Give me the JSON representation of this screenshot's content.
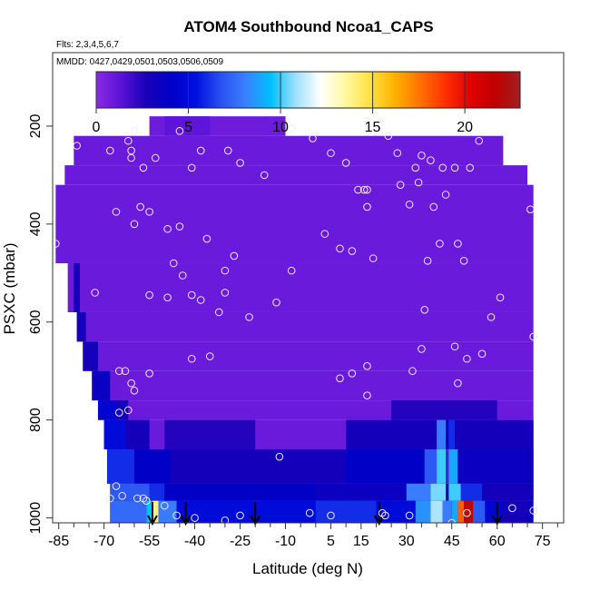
{
  "chart_data": {
    "type": "heatmap",
    "title": "ATOM4 Southbound Ncoa1_CAPS",
    "subtitle_flights": "Flts: 2,3,4,5,6,7",
    "subtitle_dates": "MMDD: 0427,0429,0501,0503,0506,0509",
    "xlabel": "Latitude (deg N)",
    "ylabel": "PSXC (mbar)",
    "xlim": [
      -87,
      82
    ],
    "ylim": [
      1010,
      50
    ],
    "y_reversed": true,
    "x_ticks": [
      -85,
      -70,
      -55,
      -40,
      -25,
      -10,
      5,
      15,
      30,
      45,
      60,
      75
    ],
    "x_tick_labels": [
      "-85",
      "-70",
      "-55",
      "-40",
      "-25",
      "-10",
      "5",
      "15",
      "30",
      "45",
      "60",
      "75"
    ],
    "y_ticks": [
      200,
      400,
      600,
      800,
      1000
    ],
    "y_tick_labels": [
      "200",
      "400",
      "600",
      "800",
      "1000"
    ],
    "colorbar": {
      "range": [
        0,
        23
      ],
      "ticks": [
        0,
        5,
        10,
        15,
        20
      ],
      "tick_labels": [
        "0",
        "5",
        "10",
        "15",
        "20"
      ],
      "colors": [
        "#8a2be2",
        "#5a12d8",
        "#1a00b8",
        "#0000c8",
        "#0010e0",
        "#2a50f0",
        "#3a80ff",
        "#00bfff",
        "#9fe0ff",
        "#ffffff",
        "#fff8a0",
        "#ffe040",
        "#ffb000",
        "#ff7000",
        "#ff3000",
        "#e00000",
        "#c00000",
        "#a02020"
      ]
    },
    "profile_markers_latitude": [
      -54,
      -43,
      -20,
      21,
      60
    ],
    "sample_points": [
      [
        -86,
        440
      ],
      [
        -79,
        240
      ],
      [
        -73,
        540
      ],
      [
        -68,
        250
      ],
      [
        -62,
        230
      ],
      [
        -61,
        250
      ],
      [
        -60,
        210
      ],
      [
        -61,
        265
      ],
      [
        -57,
        285
      ],
      [
        -53,
        265
      ],
      [
        -45,
        210
      ],
      [
        -41,
        285
      ],
      [
        -38,
        250
      ],
      [
        -29,
        250
      ],
      [
        -25,
        275
      ],
      [
        -17,
        300
      ],
      [
        -8,
        205
      ],
      [
        -1,
        225
      ],
      [
        -66,
        375
      ],
      [
        -58,
        365
      ],
      [
        -55,
        375
      ],
      [
        -49,
        410
      ],
      [
        -45,
        405
      ],
      [
        -36,
        430
      ],
      [
        -27,
        465
      ],
      [
        -30,
        495
      ],
      [
        -60,
        400
      ],
      [
        -47,
        480
      ],
      [
        -44,
        505
      ],
      [
        -41,
        545
      ],
      [
        -55,
        545
      ],
      [
        -49,
        550
      ],
      [
        -30,
        540
      ],
      [
        -22,
        590
      ],
      [
        -13,
        560
      ],
      [
        -8,
        495
      ],
      [
        3,
        420
      ],
      [
        8,
        450
      ],
      [
        12,
        455
      ],
      [
        14,
        330
      ],
      [
        16,
        330
      ],
      [
        17,
        365
      ],
      [
        17,
        330
      ],
      [
        19,
        470
      ],
      [
        24,
        220
      ],
      [
        27,
        255
      ],
      [
        5,
        255
      ],
      [
        10,
        275
      ],
      [
        -32,
        580
      ],
      [
        -38,
        555
      ],
      [
        -41,
        675
      ],
      [
        -35,
        670
      ],
      [
        -63,
        700
      ],
      [
        -61,
        725
      ],
      [
        -65,
        700
      ],
      [
        -60,
        740
      ],
      [
        -55,
        705
      ],
      [
        -62,
        780
      ],
      [
        -65,
        785
      ],
      [
        -12,
        875
      ],
      [
        -68,
        960
      ],
      [
        -66,
        935
      ],
      [
        -64,
        955
      ],
      [
        -59,
        960
      ],
      [
        -57,
        960
      ],
      [
        -56,
        965
      ],
      [
        -50,
        975
      ],
      [
        -46,
        995
      ],
      [
        -40,
        1000
      ],
      [
        -30,
        1005
      ],
      [
        -25,
        995
      ],
      [
        -2,
        990
      ],
      [
        5,
        995
      ],
      [
        8,
        715
      ],
      [
        12,
        705
      ],
      [
        17,
        690
      ],
      [
        17,
        750
      ],
      [
        22,
        990
      ],
      [
        23,
        995
      ],
      [
        31,
        995
      ],
      [
        32,
        700
      ],
      [
        35,
        655
      ],
      [
        36,
        575
      ],
      [
        37,
        475
      ],
      [
        41,
        440
      ],
      [
        47,
        440
      ],
      [
        49,
        475
      ],
      [
        46,
        650
      ],
      [
        50,
        675
      ],
      [
        55,
        665
      ],
      [
        58,
        590
      ],
      [
        61,
        550
      ],
      [
        65,
        980
      ],
      [
        72,
        985
      ],
      [
        71,
        370
      ],
      [
        72,
        630
      ],
      [
        47,
        725
      ],
      [
        45,
        1010
      ],
      [
        35,
        260
      ],
      [
        38,
        270
      ],
      [
        42,
        285
      ],
      [
        46,
        285
      ],
      [
        51,
        285
      ],
      [
        54,
        230
      ],
      [
        33,
        285
      ],
      [
        50,
        990
      ],
      [
        28,
        320
      ],
      [
        31,
        360
      ],
      [
        34,
        315
      ],
      [
        43,
        340
      ],
      [
        39,
        365
      ]
    ],
    "fill_rows": [
      {
        "p_top": 180,
        "p_bottom": 220,
        "segments": [
          [
            -55,
            -10,
            0.8
          ],
          [
            -50,
            -35,
            1.2
          ]
        ]
      },
      {
        "p_top": 220,
        "p_bottom": 280,
        "segments": [
          [
            -80,
            62,
            0.9
          ]
        ]
      },
      {
        "p_top": 280,
        "p_bottom": 320,
        "segments": [
          [
            -83,
            70,
            0.9
          ]
        ]
      },
      {
        "p_top": 320,
        "p_bottom": 480,
        "segments": [
          [
            -86,
            72,
            0.9
          ]
        ]
      },
      {
        "p_top": 480,
        "p_bottom": 580,
        "segments": [
          [
            -82,
            72,
            0.9
          ],
          [
            -80,
            -78,
            3.0
          ]
        ]
      },
      {
        "p_top": 580,
        "p_bottom": 640,
        "segments": [
          [
            -79,
            72,
            0.9
          ],
          [
            -79,
            -76,
            3.0
          ]
        ]
      },
      {
        "p_top": 640,
        "p_bottom": 700,
        "segments": [
          [
            -77,
            72,
            0.9
          ],
          [
            -77,
            -72,
            3.0
          ]
        ]
      },
      {
        "p_top": 700,
        "p_bottom": 760,
        "segments": [
          [
            -74,
            72,
            0.9
          ],
          [
            -74,
            -68,
            3.5
          ]
        ]
      },
      {
        "p_top": 760,
        "p_bottom": 800,
        "segments": [
          [
            -72,
            72,
            0.9
          ],
          [
            -72,
            -66,
            4.5
          ],
          [
            -66,
            -62,
            3.0
          ],
          [
            25,
            60,
            2.5
          ]
        ]
      },
      {
        "p_top": 800,
        "p_bottom": 860,
        "segments": [
          [
            -70,
            72,
            0.9
          ],
          [
            -70,
            -63,
            5.0
          ],
          [
            -63,
            -55,
            3.0
          ],
          [
            -50,
            -20,
            2.5
          ],
          [
            10,
            72,
            3.0
          ],
          [
            40,
            43,
            8.0
          ],
          [
            44,
            46,
            6.0
          ]
        ]
      },
      {
        "p_top": 860,
        "p_bottom": 930,
        "segments": [
          [
            -69,
            72,
            1.2
          ],
          [
            -69,
            -60,
            6.0
          ],
          [
            -60,
            -48,
            4.0
          ],
          [
            -48,
            10,
            3.0
          ],
          [
            10,
            36,
            4.0
          ],
          [
            36,
            40,
            7.0
          ],
          [
            40,
            43,
            10.0
          ],
          [
            44,
            47,
            9.0
          ],
          [
            47,
            72,
            3.5
          ]
        ]
      },
      {
        "p_top": 930,
        "p_bottom": 965,
        "segments": [
          [
            -68,
            72,
            2.5
          ],
          [
            -68,
            -55,
            7.0
          ],
          [
            -55,
            -50,
            6.0
          ],
          [
            -50,
            0,
            4.0
          ],
          [
            0,
            30,
            3.5
          ],
          [
            30,
            38,
            8.0
          ],
          [
            38,
            43,
            10.5
          ],
          [
            44,
            48,
            10.0
          ],
          [
            48,
            55,
            6.0
          ],
          [
            55,
            72,
            3.0
          ]
        ]
      },
      {
        "p_top": 965,
        "p_bottom": 1010,
        "segments": [
          [
            -68,
            72,
            3.5
          ],
          [
            -68,
            -56,
            7.5
          ],
          [
            -56,
            -54,
            9.5
          ],
          [
            -54,
            -52,
            14.0
          ],
          [
            -52,
            -46,
            8.0
          ],
          [
            -46,
            0,
            5.0
          ],
          [
            0,
            20,
            6.0
          ],
          [
            20,
            33,
            5.0
          ],
          [
            33,
            38,
            8.5
          ],
          [
            38,
            42,
            11.0
          ],
          [
            42,
            45,
            8.0
          ],
          [
            45,
            47,
            9.0
          ],
          [
            47,
            49,
            18.0
          ],
          [
            49,
            52,
            22.0
          ],
          [
            52,
            56,
            7.0
          ],
          [
            56,
            62,
            4.5
          ],
          [
            62,
            70,
            3.0
          ]
        ]
      }
    ]
  }
}
